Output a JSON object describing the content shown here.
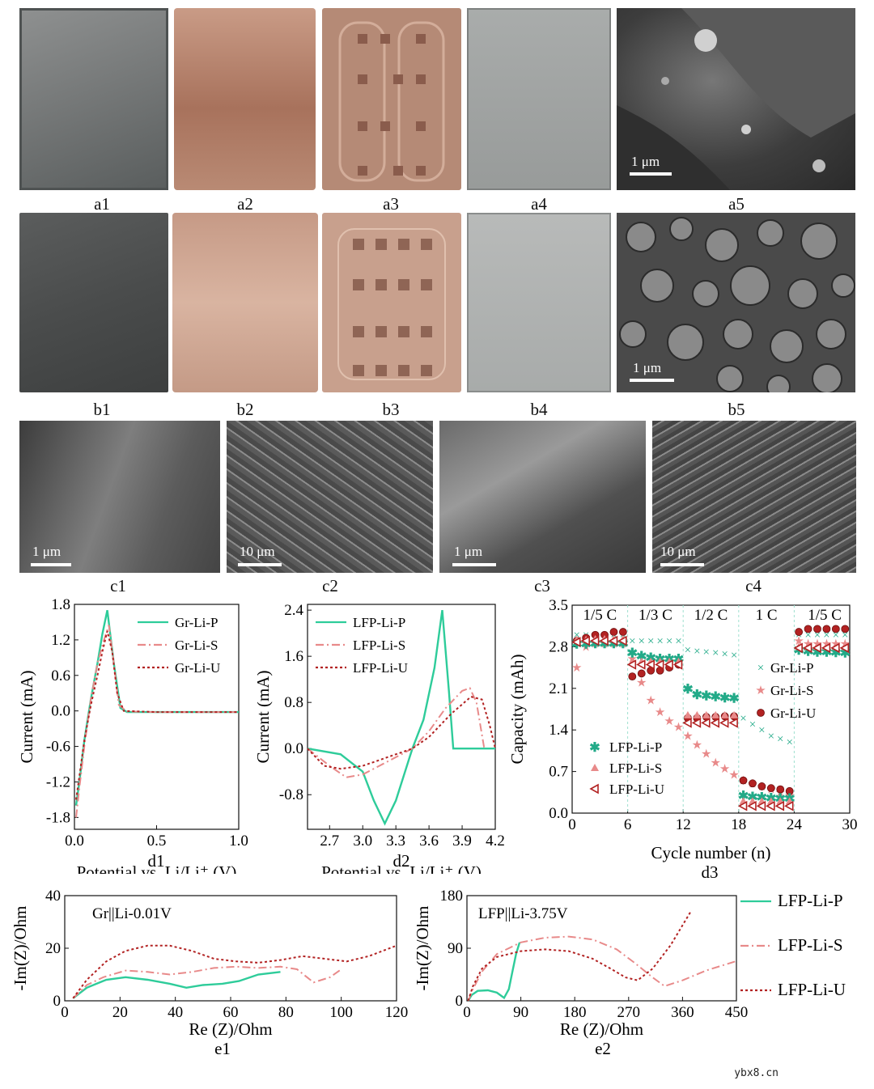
{
  "photos": {
    "a": [
      "a1",
      "a2",
      "a3",
      "a4",
      "a5"
    ],
    "b": [
      "b1",
      "b2",
      "b3",
      "b4",
      "b5"
    ],
    "c": [
      "c1",
      "c2",
      "c3",
      "c4"
    ]
  },
  "scale_labels": {
    "a5": "1 μm",
    "b5": "1 μm",
    "c1": "1 μm",
    "c2": "10 μm",
    "c3": "1 μm",
    "c4": "10 μm"
  },
  "colors": {
    "P": "#2ecc9a",
    "S": "#e88a8a",
    "U": "#b22222",
    "xtal_tint": "#22aa88"
  },
  "legend": {
    "gr": [
      "Gr-Li-P",
      "Gr-Li-S",
      "Gr-Li-U"
    ],
    "lfp": [
      "LFP-Li-P",
      "LFP-Li-S",
      "LFP-Li-U"
    ]
  },
  "panel_labels": {
    "d1": "d1",
    "d2": "d2",
    "d3": "d3",
    "e1": "e1",
    "e2": "e2"
  },
  "chart_data": [
    {
      "id": "d1",
      "type": "line",
      "xlabel": "Potential vs. Li/Li⁺ (V)",
      "ylabel": "Current (mA)",
      "xlim": [
        0,
        1.0
      ],
      "ylim": [
        -2.0,
        1.8
      ],
      "xticks": [
        "0.0",
        "0.5",
        "1.0"
      ],
      "yticks": [
        "-1.8",
        "-1.2",
        "-0.6",
        "0.0",
        "0.6",
        "1.2",
        "1.8"
      ],
      "series": [
        {
          "name": "Gr-Li-P",
          "x": [
            0.01,
            0.03,
            0.06,
            0.1,
            0.14,
            0.17,
            0.2,
            0.24,
            0.28,
            0.32,
            0.5,
            1.0
          ],
          "y": [
            -1.6,
            -1.2,
            -0.5,
            0.2,
            0.8,
            1.3,
            1.7,
            0.8,
            0.05,
            -0.02,
            -0.02,
            -0.02
          ]
        },
        {
          "name": "Gr-Li-S",
          "x": [
            0.01,
            0.03,
            0.06,
            0.1,
            0.14,
            0.18,
            0.21,
            0.24,
            0.27,
            0.32,
            0.5,
            1.0
          ],
          "y": [
            -1.8,
            -1.3,
            -0.6,
            0.2,
            0.8,
            1.2,
            1.45,
            0.8,
            0.1,
            -0.01,
            -0.02,
            -0.02
          ]
        },
        {
          "name": "Gr-Li-U",
          "x": [
            0.01,
            0.03,
            0.06,
            0.1,
            0.14,
            0.17,
            0.2,
            0.23,
            0.26,
            0.3,
            0.5,
            1.0
          ],
          "y": [
            -1.5,
            -1.1,
            -0.5,
            0.1,
            0.6,
            1.0,
            1.35,
            1.0,
            0.3,
            0.0,
            -0.02,
            -0.02
          ]
        }
      ]
    },
    {
      "id": "d2",
      "type": "line",
      "xlabel": "Potential vs. Li/Li⁺ (V)",
      "ylabel": "Current (mA)",
      "xlim": [
        2.5,
        4.2
      ],
      "ylim": [
        -1.4,
        2.5
      ],
      "xticks": [
        "2.7",
        "3.0",
        "3.3",
        "3.6",
        "3.9",
        "4.2"
      ],
      "yticks": [
        "-0.8",
        "0.0",
        "0.8",
        "1.6",
        "2.4"
      ],
      "series": [
        {
          "name": "LFP-Li-P",
          "x": [
            2.5,
            2.8,
            3.0,
            3.1,
            3.2,
            3.3,
            3.45,
            3.55,
            3.65,
            3.72,
            3.78,
            3.82,
            4.2
          ],
          "y": [
            0.0,
            -0.1,
            -0.4,
            -0.9,
            -1.3,
            -0.9,
            0.0,
            0.5,
            1.4,
            2.4,
            1.0,
            0.0,
            0.0
          ]
        },
        {
          "name": "LFP-Li-S",
          "x": [
            2.5,
            2.7,
            2.85,
            3.0,
            3.15,
            3.3,
            3.45,
            3.6,
            3.75,
            3.9,
            3.97,
            4.03,
            4.1
          ],
          "y": [
            0.0,
            -0.3,
            -0.5,
            -0.45,
            -0.3,
            -0.15,
            0.0,
            0.3,
            0.7,
            1.0,
            1.05,
            0.8,
            0.0
          ]
        },
        {
          "name": "LFP-Li-U",
          "x": [
            2.5,
            2.65,
            2.8,
            3.0,
            3.15,
            3.3,
            3.45,
            3.6,
            3.8,
            3.98,
            4.08,
            4.15,
            4.2
          ],
          "y": [
            0.0,
            -0.3,
            -0.35,
            -0.3,
            -0.2,
            -0.1,
            0.0,
            0.2,
            0.6,
            0.9,
            0.85,
            0.4,
            0.0
          ]
        }
      ]
    },
    {
      "id": "d3",
      "type": "scatter",
      "xlabel": "Cycle number (n)",
      "ylabel": "Capacity (mAh)",
      "xlim": [
        0,
        30
      ],
      "ylim": [
        0,
        3.5
      ],
      "xticks": [
        "0",
        "6",
        "12",
        "18",
        "24",
        "30"
      ],
      "yticks": [
        "0.0",
        "0.7",
        "1.4",
        "2.1",
        "2.8",
        "3.5"
      ],
      "rate_labels": [
        "1/5 C",
        "1/3 C",
        "1/2 C",
        "1 C",
        "1/5 C"
      ],
      "series": [
        {
          "name": "Gr-Li-P",
          "marker": "x",
          "values": [
            3.0,
            3.0,
            3.0,
            3.0,
            3.0,
            3.0,
            2.9,
            2.9,
            2.9,
            2.9,
            2.9,
            2.9,
            2.75,
            2.73,
            2.72,
            2.7,
            2.68,
            2.66,
            1.6,
            1.5,
            1.4,
            1.3,
            1.25,
            1.2,
            3.0,
            3.0,
            3.0,
            3.0,
            3.0,
            3.0
          ]
        },
        {
          "name": "Gr-Li-S",
          "marker": "star",
          "values": [
            2.45,
            2.8,
            2.85,
            2.85,
            2.85,
            2.85,
            2.6,
            2.2,
            1.9,
            1.7,
            1.55,
            1.45,
            1.3,
            1.15,
            1.0,
            0.85,
            0.75,
            0.65,
            0.55,
            0.5,
            0.45,
            0.4,
            0.35,
            0.3,
            2.9,
            2.85,
            2.85,
            2.85,
            2.85,
            2.85
          ]
        },
        {
          "name": "Gr-Li-U",
          "marker": "sphere",
          "values": [
            2.9,
            2.95,
            3.0,
            3.0,
            3.05,
            3.05,
            2.3,
            2.35,
            2.4,
            2.4,
            2.45,
            2.5,
            1.6,
            1.6,
            1.62,
            1.62,
            1.63,
            1.63,
            0.55,
            0.5,
            0.45,
            0.42,
            0.4,
            0.37,
            3.05,
            3.1,
            3.1,
            3.1,
            3.1,
            3.1
          ]
        },
        {
          "name": "LFP-Li-P",
          "marker": "asterisk",
          "values": [
            2.85,
            2.85,
            2.86,
            2.86,
            2.86,
            2.86,
            2.7,
            2.65,
            2.62,
            2.6,
            2.6,
            2.6,
            2.1,
            2.0,
            1.98,
            1.97,
            1.95,
            1.94,
            0.3,
            0.28,
            0.27,
            0.26,
            0.25,
            0.25,
            2.75,
            2.73,
            2.72,
            2.72,
            2.71,
            2.7
          ]
        },
        {
          "name": "LFP-Li-S",
          "marker": "triangle",
          "values": [
            2.92,
            2.92,
            2.93,
            2.93,
            2.93,
            2.93,
            2.55,
            2.55,
            2.55,
            2.55,
            2.55,
            2.55,
            1.65,
            1.65,
            1.65,
            1.65,
            1.65,
            1.65,
            0.2,
            0.2,
            0.2,
            0.2,
            0.2,
            0.2,
            2.8,
            2.8,
            2.8,
            2.8,
            2.8,
            2.8
          ]
        },
        {
          "name": "LFP-Li-U",
          "marker": "tri-left",
          "values": [
            2.88,
            2.9,
            2.9,
            2.9,
            2.9,
            2.9,
            2.5,
            2.5,
            2.5,
            2.5,
            2.5,
            2.5,
            1.52,
            1.52,
            1.52,
            1.52,
            1.52,
            1.52,
            0.12,
            0.12,
            0.12,
            0.12,
            0.12,
            0.12,
            2.78,
            2.78,
            2.78,
            2.78,
            2.78,
            2.78
          ]
        }
      ]
    },
    {
      "id": "e1",
      "type": "line",
      "annotation": "Gr||Li-0.01V",
      "xlabel": "Re (Z)/Ohm",
      "ylabel": "-Im(Z)/Ohm",
      "xlim": [
        0,
        120
      ],
      "ylim": [
        0,
        40
      ],
      "xticks": [
        "0",
        "20",
        "40",
        "60",
        "80",
        "100",
        "120"
      ],
      "yticks": [
        "0",
        "20",
        "40"
      ],
      "series": [
        {
          "name": "Gr-Li-P",
          "x": [
            3,
            8,
            15,
            22,
            30,
            38,
            44,
            50,
            57,
            63,
            70,
            78
          ],
          "y": [
            1,
            5,
            8,
            9,
            8,
            6.5,
            5,
            6,
            6.5,
            7.5,
            10,
            11
          ]
        },
        {
          "name": "Gr-Li-S",
          "x": [
            3,
            8,
            14,
            22,
            30,
            38,
            46,
            54,
            62,
            70,
            78,
            84,
            90,
            96,
            100
          ],
          "y": [
            1,
            6,
            9,
            11.5,
            11,
            10,
            11,
            12.5,
            13,
            12.5,
            13,
            12,
            7,
            9,
            12
          ]
        },
        {
          "name": "Gr-Li-U",
          "x": [
            3,
            8,
            15,
            22,
            30,
            38,
            46,
            54,
            62,
            70,
            78,
            86,
            94,
            102,
            110,
            120
          ],
          "y": [
            1,
            8,
            15,
            19,
            21,
            21,
            19,
            16,
            15,
            14.5,
            15.5,
            17,
            16,
            15,
            17,
            21
          ]
        }
      ]
    },
    {
      "id": "e2",
      "type": "line",
      "annotation": "LFP||Li-3.75V",
      "xlabel": "Re (Z)/Ohm",
      "ylabel": "-Im(Z)/Ohm",
      "xlim": [
        0,
        450
      ],
      "ylim": [
        0,
        180
      ],
      "xticks": [
        "0",
        "90",
        "180",
        "270",
        "360",
        "450"
      ],
      "yticks": [
        "0",
        "90",
        "180"
      ],
      "series": [
        {
          "name": "LFP-Li-P",
          "x": [
            2,
            8,
            18,
            35,
            50,
            62,
            70,
            76,
            82,
            88
          ],
          "y": [
            0,
            10,
            17,
            18,
            14,
            5,
            20,
            50,
            80,
            100
          ]
        },
        {
          "name": "LFP-Li-S",
          "x": [
            2,
            10,
            25,
            50,
            90,
            130,
            170,
            210,
            250,
            280,
            310,
            330,
            360,
            400,
            450
          ],
          "y": [
            0,
            20,
            50,
            80,
            100,
            108,
            110,
            105,
            88,
            65,
            40,
            25,
            35,
            52,
            68
          ]
        },
        {
          "name": "LFP-Li-U",
          "x": [
            2,
            10,
            25,
            50,
            90,
            130,
            170,
            210,
            240,
            265,
            285,
            310,
            340,
            375
          ],
          "y": [
            0,
            25,
            55,
            75,
            85,
            88,
            85,
            72,
            55,
            40,
            35,
            55,
            95,
            155
          ]
        }
      ]
    }
  ],
  "watermark": "ybx8.cn"
}
